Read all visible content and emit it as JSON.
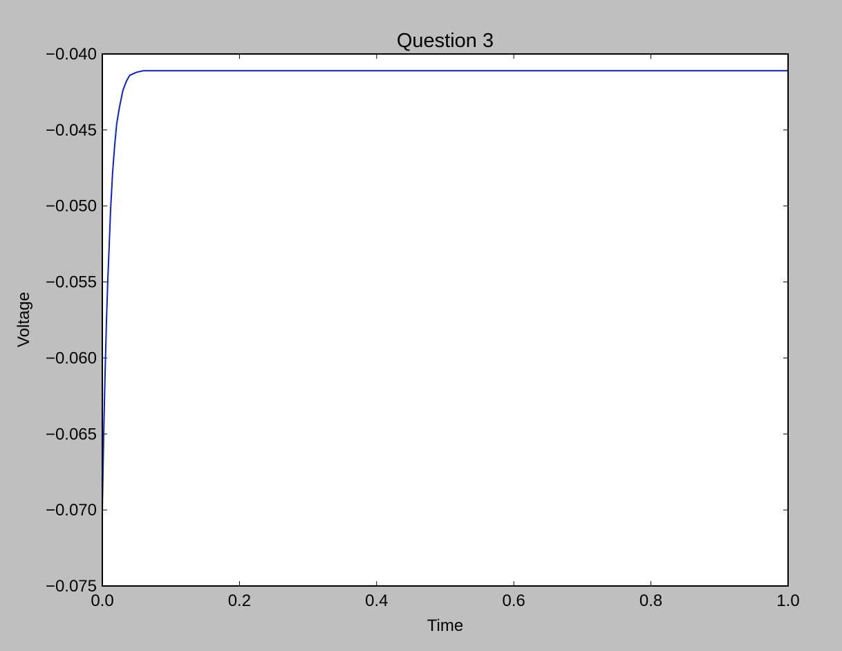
{
  "colors": {
    "figure_background": "#bfbfbf",
    "plot_background": "#ffffff",
    "line": "#0a1fd6",
    "axes": "#000000"
  },
  "chart_data": {
    "type": "line",
    "title": "Question 3",
    "xlabel": "Time",
    "ylabel": "Voltage",
    "xlim": [
      0.0,
      1.0
    ],
    "ylim": [
      -0.075,
      -0.04
    ],
    "grid": false,
    "x_ticks": [
      0.0,
      0.2,
      0.4,
      0.6,
      0.8,
      1.0
    ],
    "x_tick_labels": [
      "0.0",
      "0.2",
      "0.4",
      "0.6",
      "0.8",
      "1.0"
    ],
    "y_ticks": [
      -0.04,
      -0.045,
      -0.05,
      -0.055,
      -0.06,
      -0.065,
      -0.07,
      -0.075
    ],
    "y_tick_labels": [
      "−0.040",
      "−0.045",
      "−0.050",
      "−0.055",
      "−0.060",
      "−0.065",
      "−0.070",
      "−0.075"
    ],
    "series": [
      {
        "x": [
          0.0,
          0.002,
          0.004,
          0.006,
          0.008,
          0.01,
          0.012,
          0.015,
          0.018,
          0.021,
          0.025,
          0.03,
          0.035,
          0.04,
          0.05,
          0.06,
          0.07,
          0.08,
          0.1,
          0.2,
          0.3,
          0.4,
          0.5,
          0.6,
          0.7,
          0.8,
          0.9,
          1.0
        ],
        "y": [
          -0.07,
          -0.065,
          -0.061,
          -0.0576,
          -0.0549,
          -0.0527,
          -0.0503,
          -0.0478,
          -0.046,
          -0.0446,
          -0.0435,
          -0.0424,
          -0.0418,
          -0.0414,
          -0.0412,
          -0.0411,
          -0.0411,
          -0.0411,
          -0.0411,
          -0.0411,
          -0.0411,
          -0.0411,
          -0.0411,
          -0.0411,
          -0.0411,
          -0.0411,
          -0.0411,
          -0.0411
        ]
      }
    ]
  }
}
